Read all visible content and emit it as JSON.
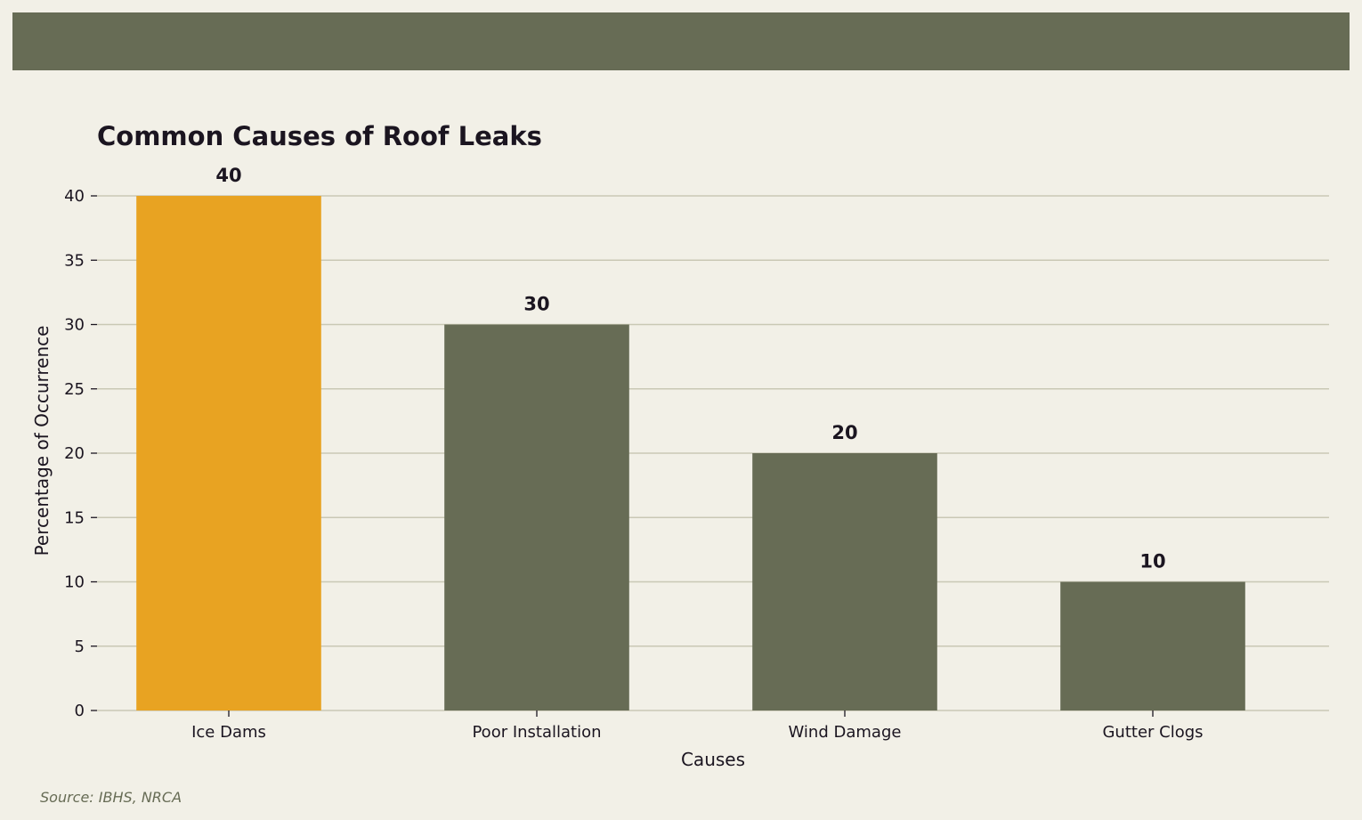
{
  "colors": {
    "page_background": "#f2f0e7",
    "band": "#676c55",
    "bar_default": "#676c55",
    "bar_highlight": "#e8a322",
    "grid": "#c9c8b5",
    "text": "#1b1520",
    "source_text": "#676c55"
  },
  "chart_data": {
    "type": "bar",
    "title": "Common Causes of Roof Leaks",
    "xlabel": "Causes",
    "ylabel": "Percentage of Occurrence",
    "categories": [
      "Ice Dams",
      "Poor Installation",
      "Wind Damage",
      "Gutter Clogs"
    ],
    "values": [
      40,
      30,
      20,
      10
    ],
    "data_labels": [
      "40",
      "30",
      "20",
      "10"
    ],
    "highlight_index": 0,
    "ylim": [
      0,
      40
    ],
    "yticks": [
      0,
      5,
      10,
      15,
      20,
      25,
      30,
      35,
      40
    ],
    "grid": true,
    "legend": "none"
  },
  "footer": {
    "source": "Source: IBHS, NRCA"
  }
}
